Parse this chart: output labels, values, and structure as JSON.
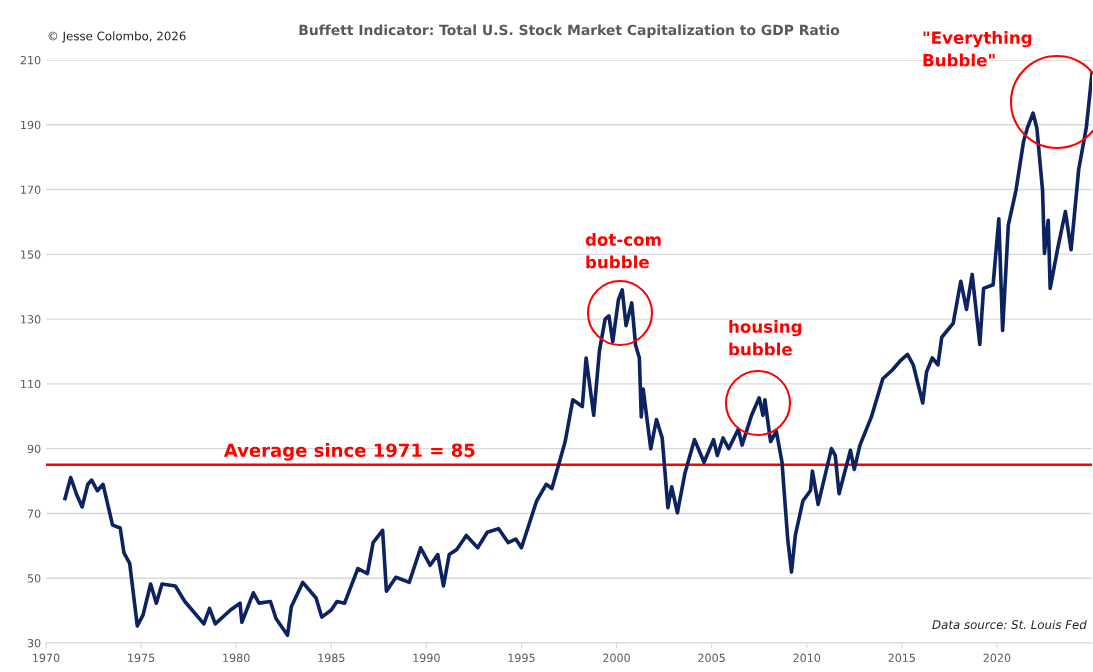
{
  "chart_data": {
    "type": "line",
    "title": "Buffett Indicator: Total U.S. Stock Market Capitalization to GDP Ratio",
    "xlim": [
      1970,
      2025
    ],
    "xticks": [
      1970,
      1975,
      1980,
      1985,
      1990,
      1995,
      2000,
      2005,
      2010,
      2015,
      2020
    ],
    "ylim": [
      30,
      210
    ],
    "yticks": [
      30,
      50,
      70,
      90,
      110,
      130,
      150,
      170,
      190,
      210
    ],
    "grid": "y",
    "marker": "none",
    "line_style": "solid",
    "series": [
      {
        "color": "#0d2260",
        "x": [
          1971.0,
          1971.3,
          1971.6,
          1971.9,
          1972.2,
          1972.4,
          1972.7,
          1973.0,
          1973.5,
          1973.9,
          1974.1,
          1974.4,
          1974.8,
          1975.1,
          1975.5,
          1975.8,
          1976.1,
          1976.8,
          1977.3,
          1978.3,
          1978.6,
          1978.9,
          1979.7,
          1980.2,
          1980.3,
          1980.9,
          1981.2,
          1981.8,
          1982.1,
          1982.7,
          1982.9,
          1983.5,
          1984.2,
          1984.5,
          1985.0,
          1985.3,
          1985.7,
          1986.4,
          1986.9,
          1987.2,
          1987.7,
          1987.9,
          1988.4,
          1989.1,
          1989.7,
          1990.2,
          1990.6,
          1990.9,
          1991.2,
          1991.6,
          1992.1,
          1992.7,
          1993.2,
          1993.8,
          1994.3,
          1994.7,
          1995.0,
          1995.8,
          1996.3,
          1996.6,
          1997.3,
          1997.7,
          1998.2,
          1998.4,
          1998.8,
          1999.1,
          1999.4,
          1999.6,
          1999.8,
          2000.1,
          2000.3,
          2000.5,
          2000.8,
          2001.0,
          2001.2,
          2001.3,
          2001.4,
          2001.8,
          2002.1,
          2002.4,
          2002.7,
          2002.9,
          2003.2,
          2003.6,
          2004.1,
          2004.6,
          2005.1,
          2005.3,
          2005.6,
          2005.9,
          2006.4,
          2006.6,
          2007.1,
          2007.5,
          2007.7,
          2007.8,
          2008.1,
          2008.4,
          2008.7,
          2009.0,
          2009.2,
          2009.4,
          2009.8,
          2010.2,
          2010.3,
          2010.6,
          2011.3,
          2011.5,
          2011.7,
          2012.3,
          2012.5,
          2012.8,
          2013.4,
          2014.0,
          2014.5,
          2014.9,
          2015.3,
          2015.6,
          2016.1,
          2016.3,
          2016.6,
          2016.9,
          2017.1,
          2017.7,
          2018.1,
          2018.4,
          2018.7,
          2019.1,
          2019.3,
          2019.8,
          2020.1,
          2020.3,
          2020.6,
          2021.0,
          2021.4,
          2021.6,
          2021.9,
          2022.1,
          2022.4,
          2022.5,
          2022.7,
          2022.8,
          2023.2,
          2023.6,
          2023.9,
          2024.3,
          2024.7,
          2025.0
        ],
        "values": [
          74.6,
          81.1,
          76,
          72,
          79,
          80.3,
          77,
          79,
          66.4,
          65.5,
          57.8,
          54.6,
          35.3,
          38.6,
          48.2,
          42.3,
          48.2,
          47.6,
          42.8,
          35.9,
          40.7,
          35.9,
          40.2,
          42.3,
          36.4,
          45.5,
          42.3,
          42.8,
          37.5,
          32.4,
          41.2,
          48.7,
          43.9,
          38,
          40.2,
          42.8,
          42.3,
          53,
          51.4,
          61,
          64.8,
          46,
          50.3,
          48.7,
          59.4,
          54,
          57.3,
          47.6,
          57.3,
          58.9,
          63.2,
          59.4,
          64.2,
          65.3,
          61,
          62.1,
          59.4,
          73.9,
          79,
          77.7,
          92.2,
          105.1,
          103,
          118,
          100.3,
          120.2,
          130,
          131,
          123,
          136,
          139,
          128,
          135,
          122,
          118,
          99.8,
          108.4,
          90,
          99,
          93.3,
          71.8,
          78.2,
          70.2,
          82.5,
          92.8,
          85.8,
          92.8,
          87.9,
          93.3,
          90,
          96,
          91.1,
          100.3,
          105.7,
          100.3,
          105.1,
          92.2,
          95.4,
          85.8,
          62.1,
          51.9,
          63.2,
          73.9,
          77.1,
          83.1,
          72.8,
          90,
          87.9,
          76.1,
          89.5,
          83.6,
          91.1,
          99.8,
          111.6,
          114.3,
          117,
          119.1,
          115.9,
          104.1,
          113.7,
          118,
          115.9,
          124.4,
          128.7,
          141.7,
          133,
          143.8,
          122.2,
          139.5,
          140.6,
          161,
          126.5,
          159,
          169.7,
          184.8,
          189,
          193.6,
          189,
          169.7,
          150.3,
          160.5,
          139.5,
          151.9,
          163.2,
          151.4,
          176.2,
          189.1,
          205.8
        ]
      }
    ],
    "ref_lines": [
      {
        "axis": "y",
        "value": 85,
        "label": "Average since 1971 = 85",
        "color": "#ff0000",
        "line_style": "solid"
      }
    ],
    "annotations": [
      "© Jesse Colombo, 2026",
      "dot-com\nbubble",
      "housing\nbubble",
      "\"Everything\nBubble\"",
      "Data source: St. Louis Fed"
    ]
  }
}
